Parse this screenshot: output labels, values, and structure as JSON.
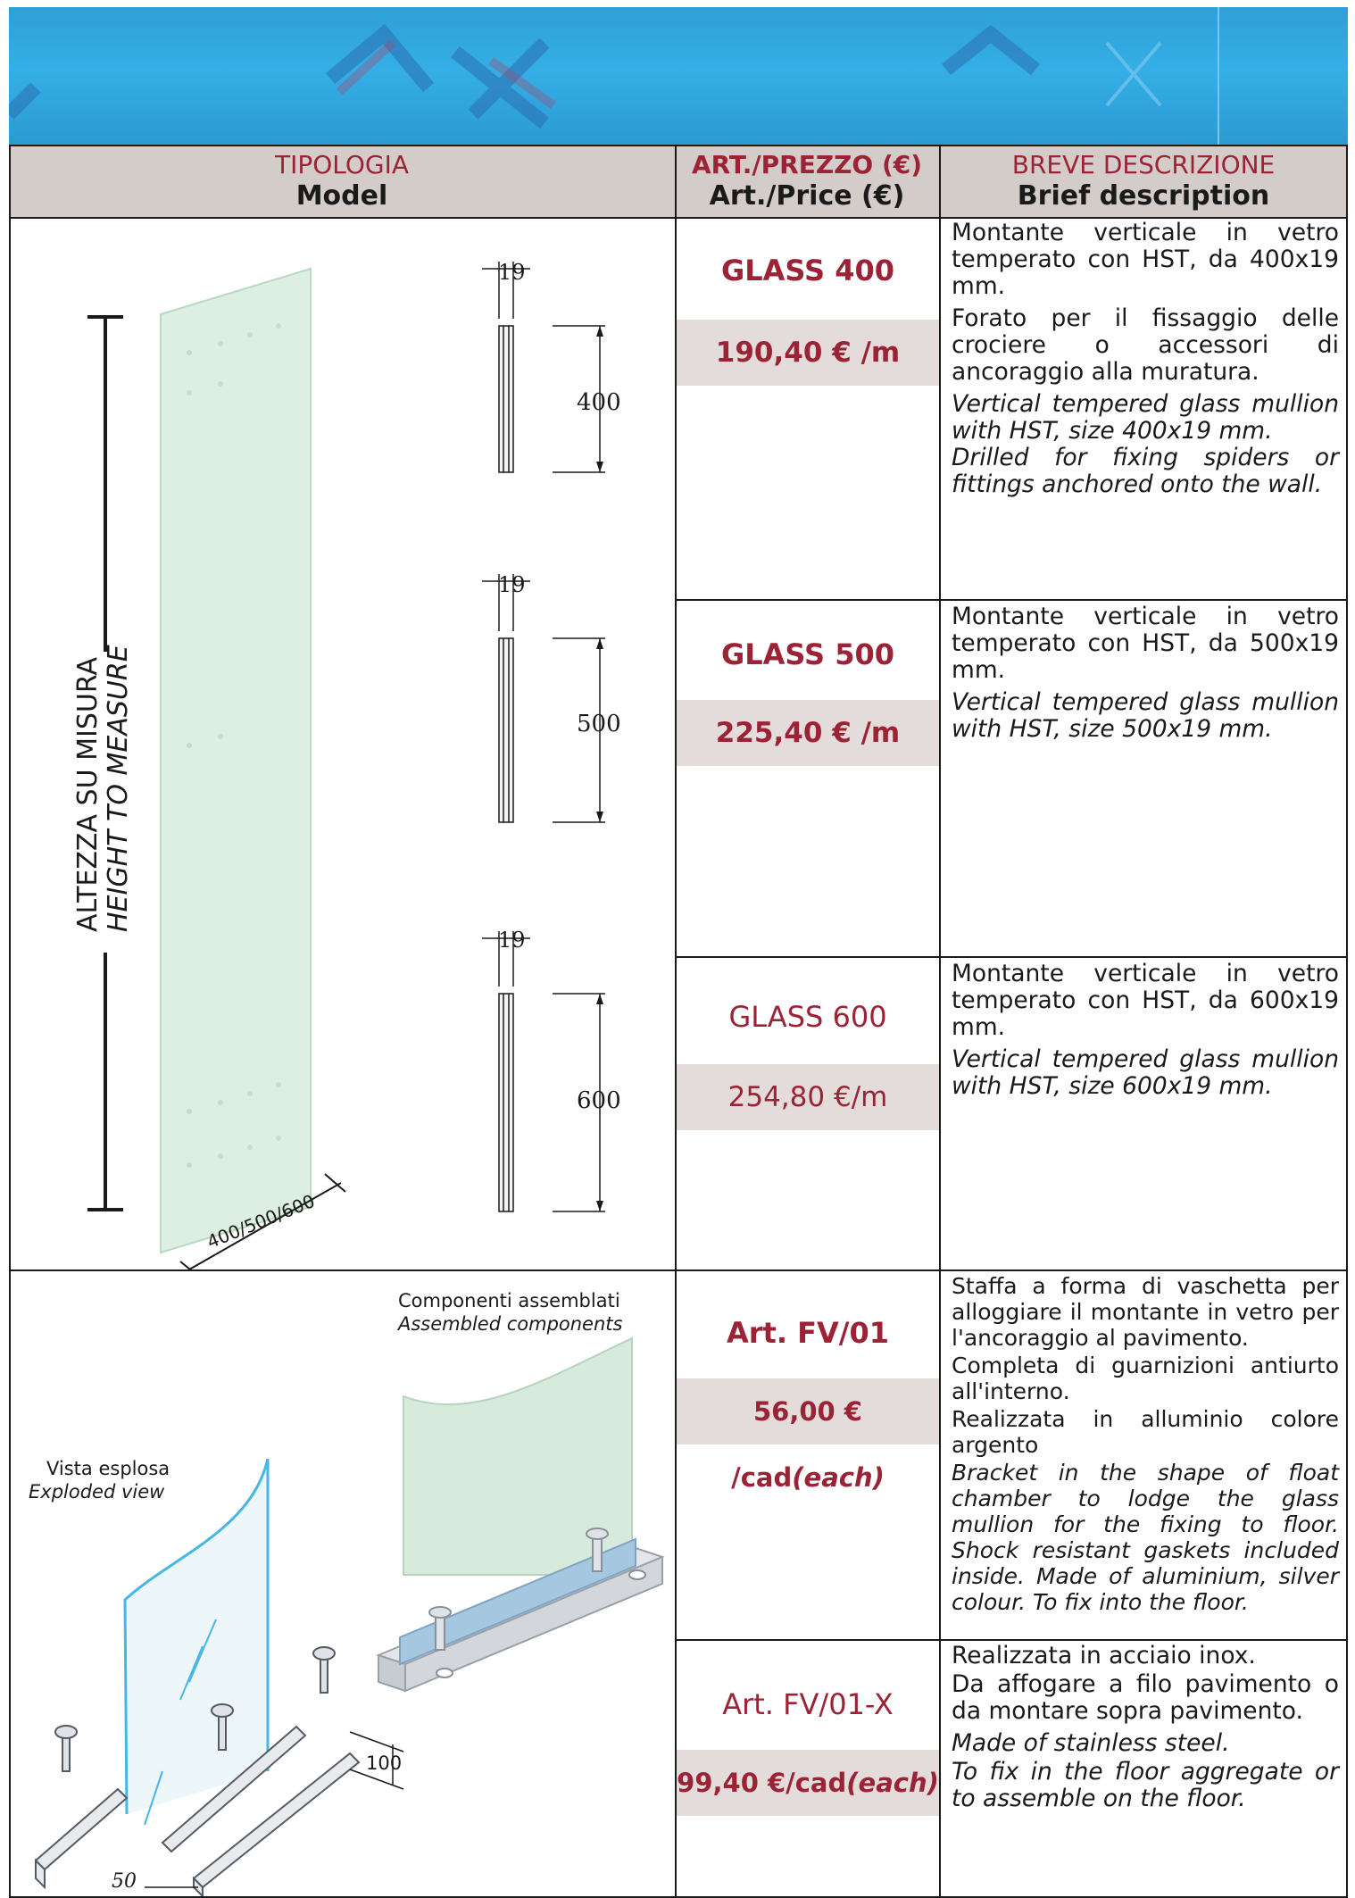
{
  "header": {
    "col1_it": "TIPOLOGIA",
    "col1_en": "Model",
    "col2_it": "ART./PREZZO (€)",
    "col2_en": "Art./Price (€)",
    "col3_it": "BREVE DESCRIZIONE",
    "col3_en": "Brief description"
  },
  "section1": {
    "height_it": "ALTEZZA SU MISURA",
    "height_en": "HEIGHT TO MEASURE",
    "width_label": "400/500/600",
    "profiles": [
      {
        "thickness": "19",
        "depth": "400"
      },
      {
        "thickness": "19",
        "depth": "500"
      },
      {
        "thickness": "19",
        "depth": "600"
      }
    ]
  },
  "products": [
    {
      "code": "GLASS 400",
      "price": "190,40 € /m",
      "desc_it_1": "Montante verticale in vetro temperato con HST, da 400x19 mm.",
      "desc_it_2": "Forato per il fissaggio delle crociere o accessori di ancoraggio alla muratura.",
      "desc_en_1": "Vertical tempered glass mullion with HST, size 400x19 mm.",
      "desc_en_2": "Drilled for fixing spiders or fittings anchored onto the wall."
    },
    {
      "code": "GLASS 500",
      "price": "225,40 € /m",
      "desc_it_1": "Montante verticale in vetro temperato con HST, da 500x19 mm.",
      "desc_en_1": "Vertical tempered glass mullion with HST,  size 500x19 mm."
    },
    {
      "code": "GLASS 600",
      "price": "254,80 €/m",
      "desc_it_1": "Montante verticale in vetro temperato con HST, da 600x19 mm.",
      "desc_en_1": "Vertical tempered glass mullion with HST,  size 600x19 mm."
    },
    {
      "code": "Art. FV/01",
      "price_main": "56,00 € /cad",
      "price_each": "(each)",
      "desc_it_1": "Staffa a forma di vaschetta per alloggiare il montante in vetro per l'ancoraggio al pavimento.",
      "desc_it_2": "Completa di guarnizioni antiurto all'interno.",
      "desc_it_3": "Realizzata in alluminio colore argento",
      "desc_en_1": "Bracket  in the shape of float chamber to lodge the glass mullion for the fixing to floor. Shock resistant gaskets included inside. Made of aluminium, silver colour. To fix into the floor."
    },
    {
      "code": "Art. FV/01-X",
      "price_main": "99,40 €/cad",
      "price_each": "(each)",
      "desc_it_1": "Realizzata in acciaio inox.",
      "desc_it_2": "Da affogare a filo pavimento o da montare sopra pavimento.",
      "desc_en_1": "Made of stainless steel.",
      "desc_en_2": "To fix in the floor aggregate or to assemble on the floor."
    }
  ],
  "section2": {
    "assembled_it": "Componenti assemblati",
    "assembled_en": "Assembled components",
    "exploded_it": "Vista esplosa",
    "exploded_en": "Exploded view",
    "dim_height": "100",
    "dim_width": "50"
  },
  "colors": {
    "accent": "#9b2335",
    "header_bg": "#d4ccc8",
    "price_bg": "#e3dcdb",
    "banner": "#34aee6"
  }
}
